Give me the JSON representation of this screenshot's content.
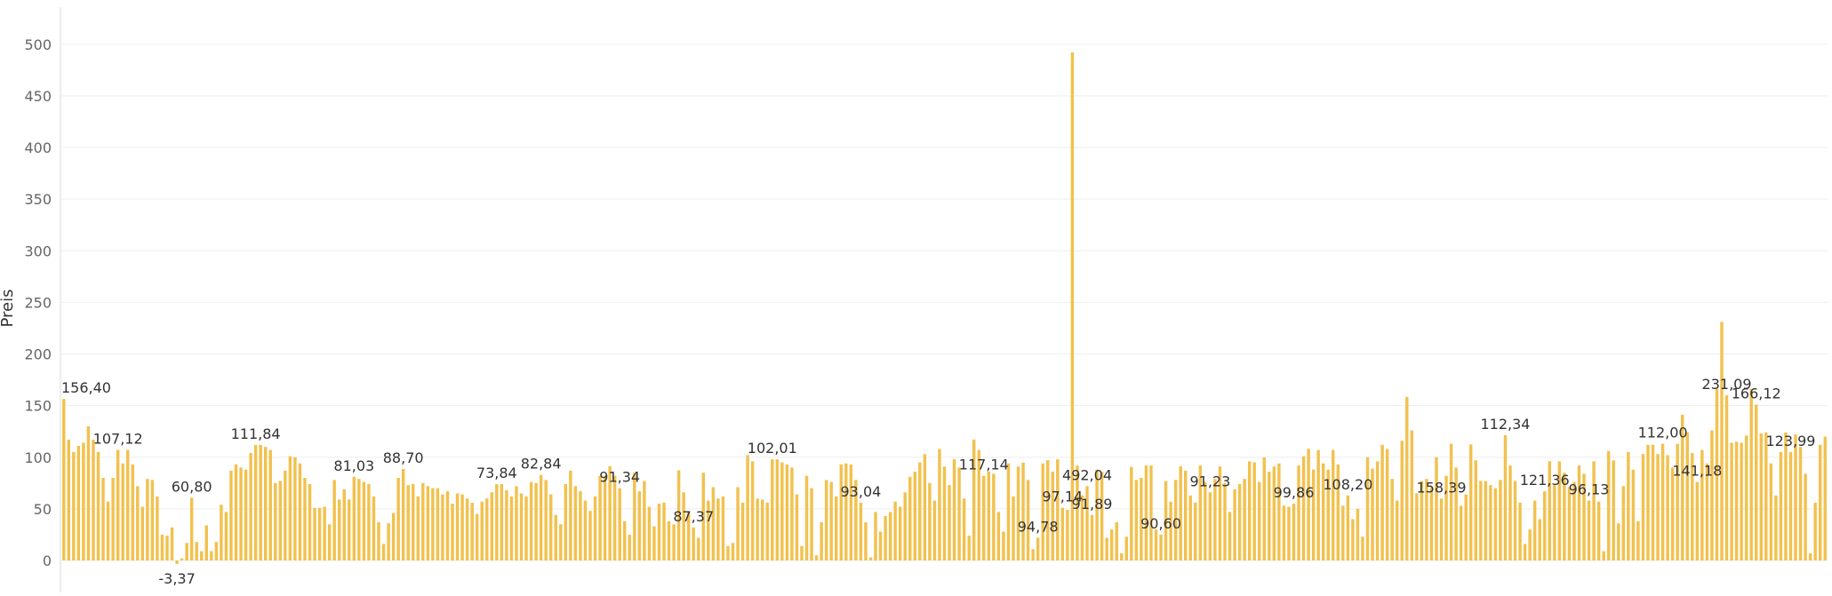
{
  "chart_data": {
    "type": "bar",
    "ylabel": "Preis",
    "ylim": [
      -10,
      540
    ],
    "yticks": [
      0,
      50,
      100,
      150,
      200,
      250,
      300,
      350,
      400,
      450,
      500
    ],
    "ytick_labels": [
      "0",
      "50",
      "100",
      "150",
      "200",
      "250",
      "300",
      "350",
      "400",
      "450",
      "500"
    ],
    "grid": true,
    "color": "#F2C14E",
    "values": [
      156.4,
      117,
      105,
      111,
      114,
      130,
      117,
      105,
      80,
      57,
      80,
      107.12,
      94,
      107,
      93,
      72,
      52,
      79,
      78,
      62,
      25,
      24,
      32,
      -3.37,
      2,
      17,
      60.8,
      18,
      9,
      34,
      9,
      18,
      54,
      47,
      87,
      93,
      90,
      88,
      104,
      111.84,
      112,
      110,
      107,
      75,
      77,
      87,
      101,
      100,
      94,
      80,
      74,
      51,
      51,
      52,
      35,
      78,
      59,
      69,
      59,
      81.03,
      79,
      76,
      74,
      62,
      37,
      16,
      36,
      46,
      80,
      88.7,
      73,
      74,
      62,
      75,
      72,
      70,
      70,
      64,
      67,
      55,
      65,
      64,
      60,
      56,
      45,
      57,
      60,
      66,
      73.84,
      74,
      68,
      62,
      72,
      65,
      62,
      76,
      75,
      82.84,
      78,
      64,
      44,
      35,
      74,
      87,
      72,
      67,
      58,
      48,
      62,
      82,
      82,
      91.34,
      82,
      70,
      38,
      25,
      85,
      67,
      77,
      52,
      33,
      55,
      56,
      38,
      35,
      87.37,
      66,
      47,
      32,
      22,
      85,
      58,
      71,
      60,
      62,
      14,
      17,
      71,
      56,
      102.01,
      96,
      60,
      59,
      56,
      98,
      98,
      95,
      93,
      90,
      64,
      14,
      82,
      70,
      5,
      37,
      78,
      76,
      62,
      93.04,
      94,
      93,
      78,
      56,
      37,
      3,
      47,
      28,
      43,
      47,
      57,
      52,
      66,
      81,
      86,
      95,
      103,
      75,
      58,
      108,
      91,
      73,
      98,
      90,
      60,
      24,
      117.14,
      107,
      82,
      86,
      84,
      47,
      28,
      94,
      62,
      91,
      94.78,
      78,
      11,
      22,
      94,
      97.14,
      86,
      98,
      51,
      49,
      492.04,
      91.89,
      63,
      72,
      44,
      88,
      86,
      22,
      30,
      37,
      7,
      23,
      90.6,
      78,
      80,
      92,
      92,
      30,
      25,
      77,
      57,
      78,
      91.23,
      87,
      63,
      56,
      92,
      76,
      66,
      79,
      91,
      75,
      47,
      69,
      74,
      79,
      96,
      95,
      76,
      99.86,
      86,
      91,
      94,
      53,
      52,
      55,
      92,
      101,
      108.2,
      88,
      107,
      94,
      88,
      107,
      93,
      53,
      63,
      40,
      50,
      23,
      100,
      89,
      96,
      112,
      108,
      79,
      58,
      116,
      158.39,
      126,
      65,
      77,
      79,
      71,
      100,
      60,
      82,
      113,
      90,
      53,
      64,
      112.34,
      97,
      77,
      77,
      73,
      70,
      78,
      121.36,
      92,
      77,
      56,
      16,
      30,
      58,
      40,
      67,
      96.13,
      73,
      96,
      85,
      71,
      76,
      92,
      84,
      58,
      96,
      57,
      9,
      106,
      97,
      36,
      72,
      105,
      88,
      38,
      103,
      112.0,
      112,
      103,
      113,
      102,
      90,
      113,
      141.18,
      124,
      104,
      76,
      107,
      94,
      126,
      166,
      231.09,
      160,
      114,
      115,
      114,
      121,
      166.12,
      151,
      123,
      124,
      94,
      63,
      105,
      123.99,
      105,
      122,
      110,
      84,
      7,
      56,
      112,
      120
    ],
    "data_labels": [
      {
        "index": 0,
        "text": "156,40"
      },
      {
        "index": 11,
        "text": "107,12"
      },
      {
        "index": 23,
        "text": "-3,37"
      },
      {
        "index": 26,
        "text": "60,80"
      },
      {
        "index": 39,
        "text": "111,84"
      },
      {
        "index": 59,
        "text": "81,03"
      },
      {
        "index": 69,
        "text": "88,70"
      },
      {
        "index": 88,
        "text": "73,84"
      },
      {
        "index": 97,
        "text": "82,84"
      },
      {
        "index": 113,
        "text": "91,34"
      },
      {
        "index": 128,
        "text": "87,37"
      },
      {
        "index": 144,
        "text": "102,01"
      },
      {
        "index": 162,
        "text": "93,04"
      },
      {
        "index": 187,
        "text": "117,14"
      },
      {
        "index": 198,
        "text": "94,78"
      },
      {
        "index": 203,
        "text": "97,14"
      },
      {
        "index": 208,
        "text": "492,04"
      },
      {
        "index": 209,
        "text": "91,89"
      },
      {
        "index": 223,
        "text": "90,60"
      },
      {
        "index": 233,
        "text": "91,23"
      },
      {
        "index": 250,
        "text": "99,86"
      },
      {
        "index": 261,
        "text": "108,20"
      },
      {
        "index": 280,
        "text": "158,39"
      },
      {
        "index": 293,
        "text": "112,34"
      },
      {
        "index": 301,
        "text": "121,36"
      },
      {
        "index": 310,
        "text": "96,13"
      },
      {
        "index": 325,
        "text": "112,00"
      },
      {
        "index": 332,
        "text": "141,18"
      },
      {
        "index": 338,
        "text": "231,09"
      },
      {
        "index": 344,
        "text": "166,12"
      },
      {
        "index": 351,
        "text": "123,99"
      }
    ]
  }
}
